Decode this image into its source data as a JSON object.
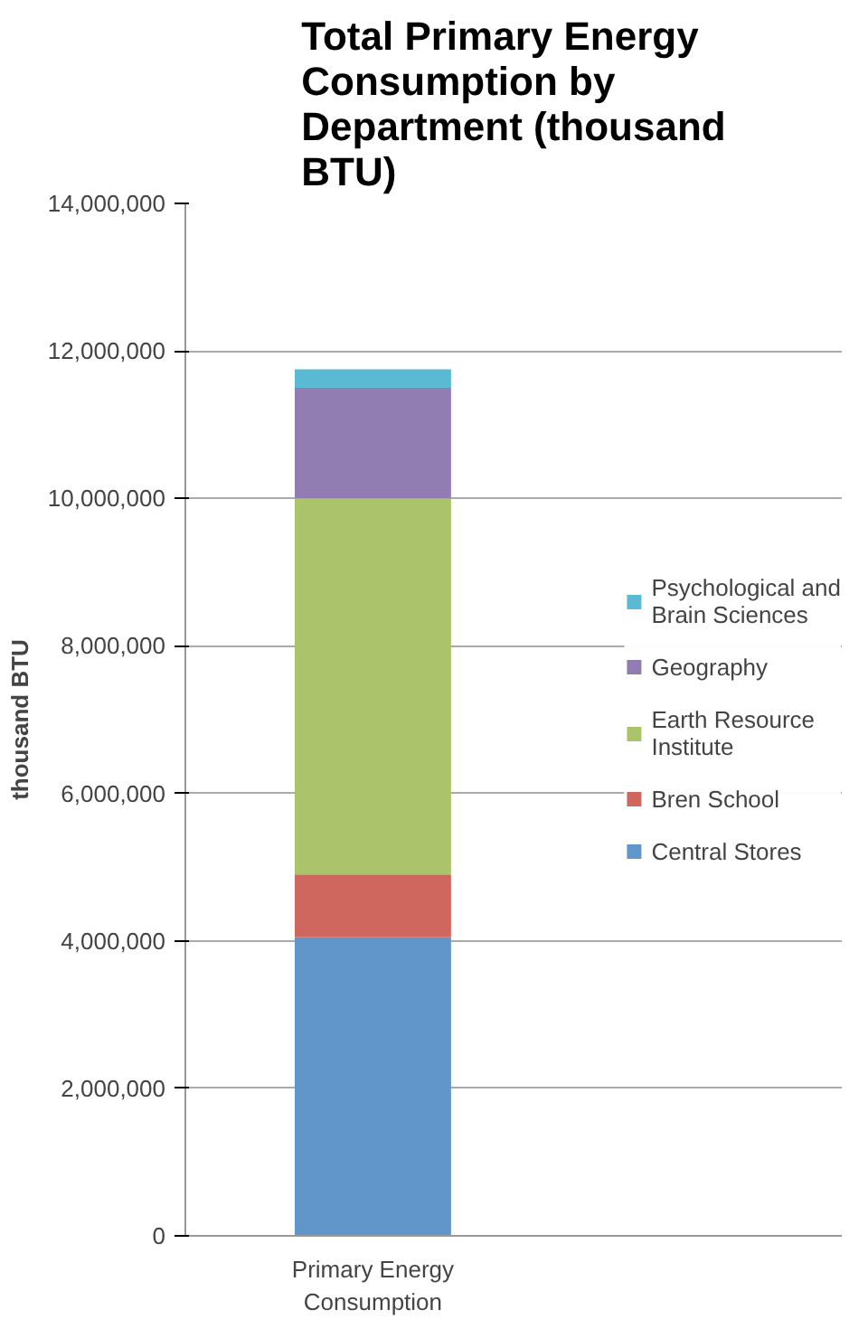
{
  "chart_data": {
    "type": "bar",
    "title": "Total Primary Energy Consumption by Department (thousand BTU)",
    "ylabel": "thousand BTU",
    "categories": [
      "Primary Energy Consumption"
    ],
    "stacked": true,
    "series": [
      {
        "name": "Central Stores",
        "color": "#6096c9",
        "values": [
          4050000
        ]
      },
      {
        "name": "Bren School",
        "color": "#cf675f",
        "values": [
          850000
        ]
      },
      {
        "name": "Earth Resource Institute",
        "color": "#abc46c",
        "values": [
          5100000
        ]
      },
      {
        "name": "Geography",
        "color": "#927db2",
        "values": [
          1500000
        ]
      },
      {
        "name": "Psychological and Brain Sciences",
        "color": "#5bbad3",
        "values": [
          250000
        ]
      }
    ],
    "ylim": [
      0,
      14000000
    ],
    "yticks": [
      {
        "value": 0,
        "label": "0"
      },
      {
        "value": 2000000,
        "label": "2,000,000"
      },
      {
        "value": 4000000,
        "label": "4,000,000"
      },
      {
        "value": 6000000,
        "label": "6,000,000"
      },
      {
        "value": 8000000,
        "label": "8,000,000"
      },
      {
        "value": 10000000,
        "label": "10,000,000"
      },
      {
        "value": 12000000,
        "label": "12,000,000"
      },
      {
        "value": 14000000,
        "label": "14,000,000"
      }
    ],
    "grid": "y",
    "legend": "right"
  }
}
